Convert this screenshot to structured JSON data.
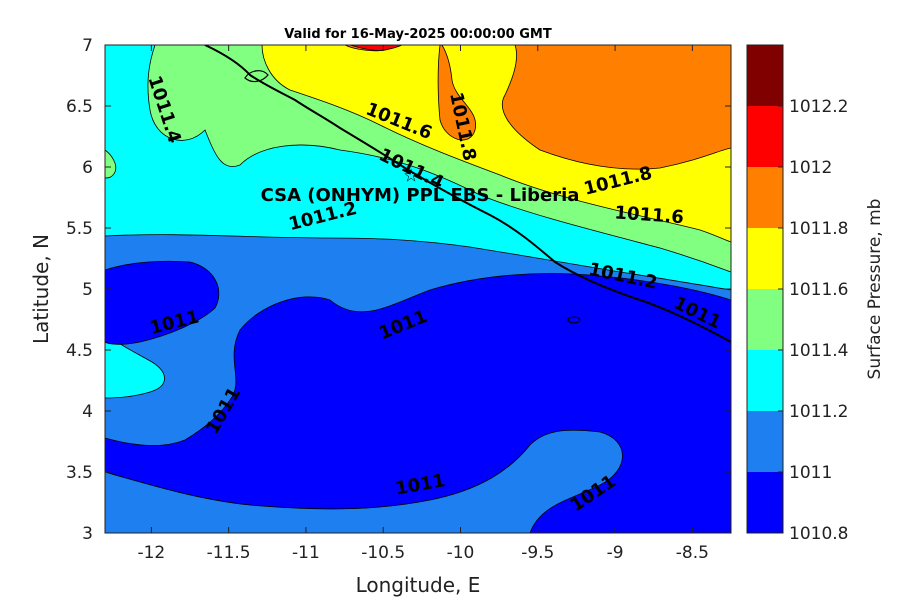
{
  "chart_data": {
    "type": "contour",
    "title": "Valid for 16-May-2025 00:00:00 GMT",
    "xlabel": "Longitude, E",
    "ylabel": "Latitude, N",
    "xlim": [
      -12.3,
      -8.25
    ],
    "ylim": [
      3,
      7
    ],
    "xticks": [
      "-12",
      "-11.5",
      "-11",
      "-10.5",
      "-10",
      "-9.5",
      "-9",
      "-8.5"
    ],
    "xtick_values": [
      -12,
      -11.5,
      -11,
      -10.5,
      -10,
      -9.5,
      -9,
      -8.5
    ],
    "yticks": [
      "3",
      "3.5",
      "4",
      "4.5",
      "5",
      "5.5",
      "6",
      "6.5",
      "7"
    ],
    "ytick_values": [
      3,
      3.5,
      4,
      4.5,
      5,
      5.5,
      6,
      6.5,
      7
    ],
    "colorbar": {
      "label": "Surface Pressure, mb",
      "levels": [
        "1010.8",
        "1011",
        "1011.2",
        "1011.4",
        "1011.6",
        "1011.8",
        "1012",
        "1012.2"
      ],
      "colors": [
        "#0000ff",
        "#1e7ff0",
        "#00ffff",
        "#80ff80",
        "#ffff00",
        "#ff8000",
        "#ff0000",
        "#800000"
      ]
    },
    "annotation": "CSA (ONHYM) PPL EBS  - Liberia",
    "contour_labels": [
      {
        "text": "1011.4",
        "lon": -11.92,
        "lat": 6.47,
        "rotate": 72
      },
      {
        "text": "1011.6",
        "lon": -10.4,
        "lat": 6.37,
        "rotate": 22
      },
      {
        "text": "1011.8",
        "lon": -9.99,
        "lat": 6.33,
        "rotate": 78
      },
      {
        "text": "1011.4",
        "lon": -10.32,
        "lat": 5.98,
        "rotate": 26
      },
      {
        "text": "1011.8",
        "lon": -8.98,
        "lat": 5.88,
        "rotate": -14
      },
      {
        "text": "1011.6",
        "lon": -8.78,
        "lat": 5.6,
        "rotate": 4
      },
      {
        "text": "1011.2",
        "lon": -10.89,
        "lat": 5.59,
        "rotate": -14
      },
      {
        "text": "1011.2",
        "lon": -8.95,
        "lat": 5.1,
        "rotate": 12
      },
      {
        "text": "1011",
        "lon": -8.47,
        "lat": 4.8,
        "rotate": 26
      },
      {
        "text": "1011",
        "lon": -11.85,
        "lat": 4.72,
        "rotate": -14
      },
      {
        "text": "1011",
        "lon": -10.37,
        "lat": 4.7,
        "rotate": -22
      },
      {
        "text": "1011",
        "lon": -11.53,
        "lat": 4.0,
        "rotate": -60
      },
      {
        "text": "1011",
        "lon": -10.26,
        "lat": 3.39,
        "rotate": -10
      },
      {
        "text": "1011",
        "lon": -9.14,
        "lat": 3.32,
        "rotate": -34
      }
    ],
    "station": {
      "lon": -10.32,
      "lat": 5.93
    },
    "grid": false
  }
}
